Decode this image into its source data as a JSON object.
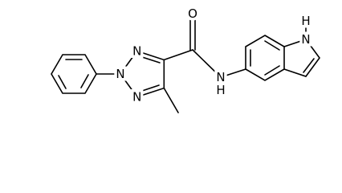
{
  "molecule": {
    "atoms": [
      {
        "label": "O"
      },
      {
        "label": "N"
      },
      {
        "label": "N"
      },
      {
        "label": "N"
      },
      {
        "label": "N"
      },
      {
        "label": "H"
      },
      {
        "label": "N"
      },
      {
        "label": "H"
      }
    ]
  }
}
